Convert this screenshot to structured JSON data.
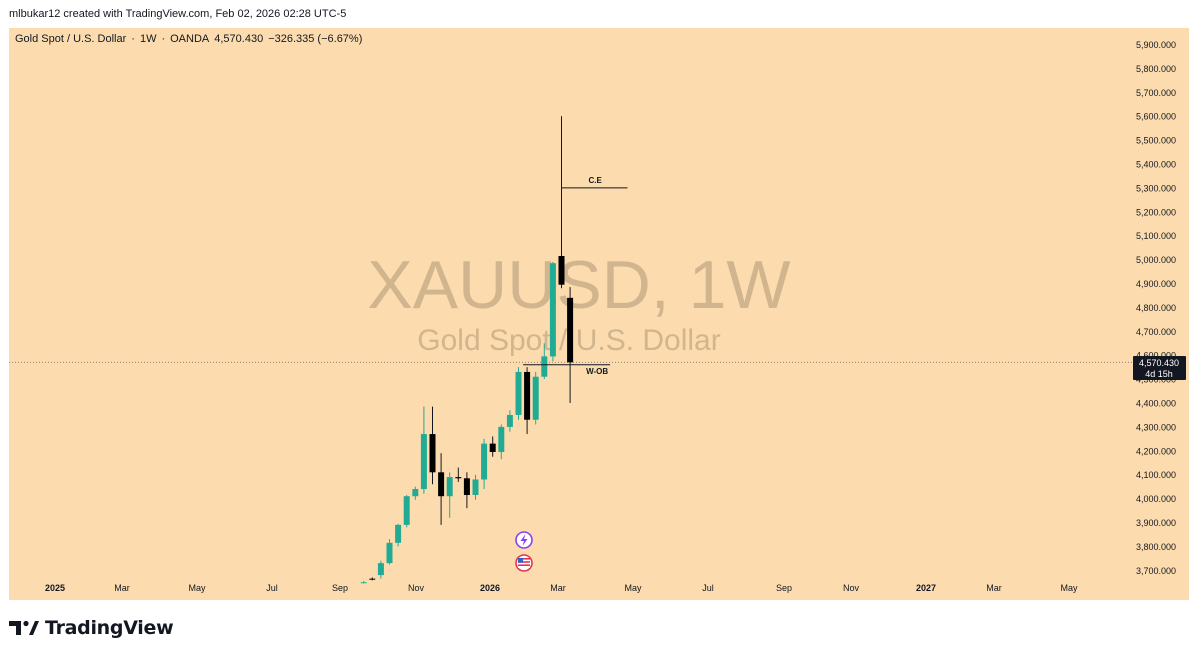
{
  "attribution": "mlbukar12 created with TradingView.com, Feb 02, 2026 02:28 UTC-5",
  "header": {
    "symbol_name": "Gold Spot / U.S. Dollar",
    "interval": "1W",
    "exchange": "OANDA",
    "last_price": "4,570.430",
    "change": "−326.335 (−6.67%)"
  },
  "watermark": {
    "ticker": "XAUUSD, 1W",
    "description": "Gold Spot / U.S. Dollar"
  },
  "price_label": {
    "price": "4,570.430",
    "countdown": "4d 15h",
    "background": "#131722"
  },
  "annotations": {
    "ce_label": "C.E",
    "wob_label": "W-OB"
  },
  "footer": {
    "brand": "TradingView"
  },
  "colors": {
    "background": "#fcdcae",
    "up": "#22ab94",
    "down": "#000000",
    "text": "#131722"
  },
  "chart_data": {
    "type": "candlestick",
    "ylim": [
      3650,
      5960
    ],
    "y_ticks": [
      "5,900.000",
      "5,800.000",
      "5,700.000",
      "5,600.000",
      "5,500.000",
      "5,400.000",
      "5,300.000",
      "5,200.000",
      "5,100.000",
      "5,000.000",
      "4,900.000",
      "4,800.000",
      "4,700.000",
      "4,600.000",
      "4,500.000",
      "4,400.000",
      "4,300.000",
      "4,200.000",
      "4,100.000",
      "4,000.000",
      "3,900.000",
      "3,800.000",
      "3,700.000"
    ],
    "x_ticks": [
      {
        "label": "2025",
        "bold": true
      },
      {
        "label": "Mar",
        "bold": false
      },
      {
        "label": "May",
        "bold": false
      },
      {
        "label": "Jul",
        "bold": false
      },
      {
        "label": "Sep",
        "bold": false
      },
      {
        "label": "Nov",
        "bold": false
      },
      {
        "label": "2026",
        "bold": true
      },
      {
        "label": "Mar",
        "bold": false
      },
      {
        "label": "May",
        "bold": false
      },
      {
        "label": "Jul",
        "bold": false
      },
      {
        "label": "Sep",
        "bold": false
      },
      {
        "label": "Nov",
        "bold": false
      },
      {
        "label": "2027",
        "bold": true
      },
      {
        "label": "Mar",
        "bold": false
      },
      {
        "label": "May",
        "bold": false
      }
    ],
    "candles": [
      {
        "week": "2025-08-18",
        "open": 3650,
        "high": 3655,
        "low": 3645,
        "close": 3650
      },
      {
        "week": "2025-08-25",
        "open": 3665,
        "high": 3670,
        "low": 3658,
        "close": 3662
      },
      {
        "week": "2025-09-01",
        "open": 3680,
        "high": 3740,
        "low": 3665,
        "close": 3730
      },
      {
        "week": "2025-09-08",
        "open": 3730,
        "high": 3830,
        "low": 3725,
        "close": 3815
      },
      {
        "week": "2025-09-15",
        "open": 3815,
        "high": 3895,
        "low": 3800,
        "close": 3890
      },
      {
        "week": "2025-09-22",
        "open": 3890,
        "high": 4015,
        "low": 3880,
        "close": 4010
      },
      {
        "week": "2025-09-29",
        "open": 4010,
        "high": 4050,
        "low": 3995,
        "close": 4040
      },
      {
        "week": "2025-10-06",
        "open": 4040,
        "high": 4385,
        "low": 4020,
        "close": 4270
      },
      {
        "week": "2025-10-13",
        "open": 4270,
        "high": 4385,
        "low": 4060,
        "close": 4110
      },
      {
        "week": "2025-10-20",
        "open": 4110,
        "high": 4190,
        "low": 3890,
        "close": 4010
      },
      {
        "week": "2025-10-27",
        "open": 4010,
        "high": 4110,
        "low": 3920,
        "close": 4090
      },
      {
        "week": "2025-11-03",
        "open": 4090,
        "high": 4130,
        "low": 4070,
        "close": 4085
      },
      {
        "week": "2025-11-10",
        "open": 4085,
        "high": 4110,
        "low": 3960,
        "close": 4015
      },
      {
        "week": "2025-11-17",
        "open": 4015,
        "high": 4100,
        "low": 3995,
        "close": 4080
      },
      {
        "week": "2025-11-24",
        "open": 4080,
        "high": 4250,
        "low": 4040,
        "close": 4230
      },
      {
        "week": "2025-12-01",
        "open": 4230,
        "high": 4260,
        "low": 4175,
        "close": 4195
      },
      {
        "week": "2025-12-08",
        "open": 4195,
        "high": 4310,
        "low": 4165,
        "close": 4300
      },
      {
        "week": "2025-12-15",
        "open": 4300,
        "high": 4370,
        "low": 4280,
        "close": 4350
      },
      {
        "week": "2025-12-22",
        "open": 4350,
        "high": 4550,
        "low": 4330,
        "close": 4530
      },
      {
        "week": "2025-12-29",
        "open": 4530,
        "high": 4550,
        "low": 4270,
        "close": 4330
      },
      {
        "week": "2026-01-05",
        "open": 4330,
        "high": 4530,
        "low": 4310,
        "close": 4510
      },
      {
        "week": "2026-01-12",
        "open": 4510,
        "high": 4650,
        "low": 4500,
        "close": 4595
      },
      {
        "week": "2026-01-19",
        "open": 4595,
        "high": 4990,
        "low": 4575,
        "close": 4985
      },
      {
        "week": "2026-01-26",
        "open": 5015,
        "high": 5600,
        "low": 4880,
        "close": 4895
      },
      {
        "week": "2026-02-02",
        "open": 4840,
        "high": 4885,
        "low": 4400,
        "close": 4570
      }
    ],
    "last_price_line": 4570.43,
    "ce_level": 5300,
    "wob_level": 4560
  }
}
